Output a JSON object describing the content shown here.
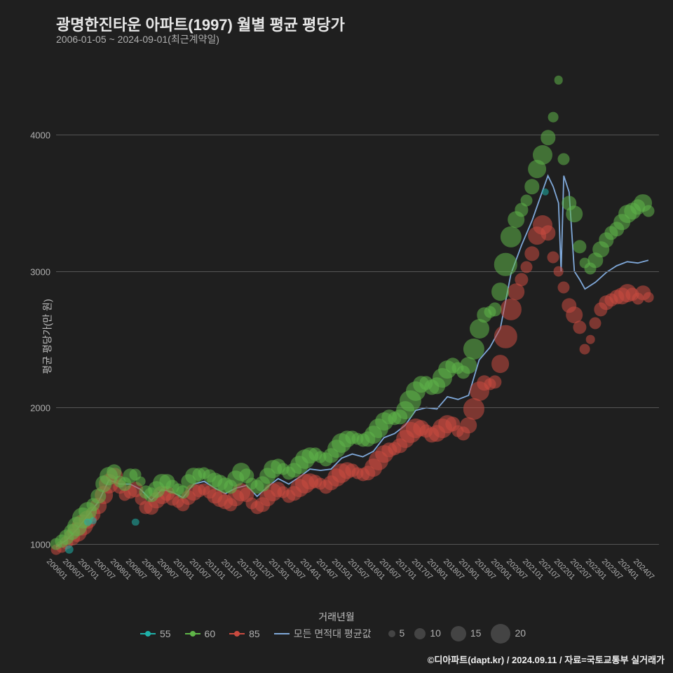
{
  "title": "광명한진타운 아파트(1997) 월별 평균 평당가",
  "subtitle": "2006-01-05 ~ 2024-09-01(최근계약일)",
  "ylabel": "평균 평당가(만 원)",
  "xlabel": "거래년월",
  "credit": "©디아파트(dapt.kr) / 2024.09.11 / 자료=국토교통부 실거래가",
  "chart": {
    "type": "scatter+line",
    "background": "#1f1f1f",
    "grid_color": "#555555",
    "ylim": [
      800,
      4500
    ],
    "yticks": [
      1000,
      2000,
      3000,
      4000
    ],
    "xlim": [
      0,
      228
    ],
    "xticks_every": 6,
    "xtick_labels": [
      "200601",
      "200607",
      "200701",
      "200707",
      "200801",
      "200807",
      "200901",
      "200907",
      "201001",
      "201007",
      "201101",
      "201107",
      "201201",
      "201207",
      "201301",
      "201307",
      "201401",
      "201407",
      "201501",
      "201507",
      "201601",
      "201607",
      "201701",
      "201707",
      "201801",
      "201807",
      "201901",
      "201907",
      "202001",
      "202007",
      "202101",
      "202107",
      "202201",
      "202207",
      "202301",
      "202307",
      "202401",
      "202407"
    ],
    "series": {
      "55": {
        "label": "55",
        "color": "#1fb0a8"
      },
      "60": {
        "label": "60",
        "color": "#5fb548"
      },
      "85": {
        "label": "85",
        "color": "#c94a3f"
      },
      "avg": {
        "label": "모든 면적대 평균값",
        "color": "#7fa8d9"
      }
    },
    "size_legend": [
      {
        "label": "5",
        "px": 10
      },
      {
        "label": "10",
        "px": 16
      },
      {
        "label": "15",
        "px": 22
      },
      {
        "label": "20",
        "px": 28
      }
    ],
    "points_55": [
      [
        5,
        960,
        6
      ],
      [
        12,
        1160,
        4
      ],
      [
        14,
        1170,
        4
      ],
      [
        30,
        1160,
        4
      ],
      [
        185,
        3580,
        4
      ]
    ],
    "points_60": [
      [
        0,
        1000,
        10
      ],
      [
        2,
        1020,
        12
      ],
      [
        4,
        1050,
        14
      ],
      [
        6,
        1090,
        16
      ],
      [
        8,
        1130,
        20
      ],
      [
        10,
        1190,
        22
      ],
      [
        12,
        1240,
        18
      ],
      [
        14,
        1290,
        12
      ],
      [
        16,
        1350,
        14
      ],
      [
        18,
        1440,
        16
      ],
      [
        20,
        1500,
        18
      ],
      [
        22,
        1530,
        14
      ],
      [
        24,
        1460,
        10
      ],
      [
        26,
        1440,
        12
      ],
      [
        28,
        1500,
        14
      ],
      [
        30,
        1510,
        10
      ],
      [
        32,
        1460,
        8
      ],
      [
        34,
        1380,
        12
      ],
      [
        36,
        1360,
        14
      ],
      [
        38,
        1400,
        16
      ],
      [
        40,
        1450,
        18
      ],
      [
        42,
        1460,
        14
      ],
      [
        44,
        1420,
        12
      ],
      [
        46,
        1400,
        10
      ],
      [
        48,
        1380,
        12
      ],
      [
        50,
        1460,
        14
      ],
      [
        52,
        1500,
        16
      ],
      [
        54,
        1510,
        12
      ],
      [
        56,
        1520,
        10
      ],
      [
        58,
        1500,
        12
      ],
      [
        60,
        1470,
        14
      ],
      [
        62,
        1450,
        16
      ],
      [
        64,
        1430,
        14
      ],
      [
        66,
        1420,
        12
      ],
      [
        68,
        1480,
        16
      ],
      [
        70,
        1530,
        18
      ],
      [
        72,
        1500,
        14
      ],
      [
        74,
        1440,
        10
      ],
      [
        76,
        1420,
        12
      ],
      [
        78,
        1440,
        14
      ],
      [
        80,
        1500,
        16
      ],
      [
        82,
        1550,
        18
      ],
      [
        84,
        1570,
        14
      ],
      [
        86,
        1550,
        10
      ],
      [
        88,
        1520,
        12
      ],
      [
        90,
        1540,
        14
      ],
      [
        92,
        1580,
        18
      ],
      [
        94,
        1620,
        20
      ],
      [
        96,
        1650,
        16
      ],
      [
        98,
        1660,
        12
      ],
      [
        100,
        1640,
        10
      ],
      [
        102,
        1620,
        12
      ],
      [
        104,
        1650,
        14
      ],
      [
        106,
        1700,
        18
      ],
      [
        108,
        1740,
        20
      ],
      [
        110,
        1770,
        16
      ],
      [
        112,
        1780,
        12
      ],
      [
        114,
        1770,
        10
      ],
      [
        116,
        1760,
        12
      ],
      [
        118,
        1770,
        14
      ],
      [
        120,
        1800,
        18
      ],
      [
        122,
        1850,
        20
      ],
      [
        124,
        1900,
        18
      ],
      [
        126,
        1930,
        14
      ],
      [
        128,
        1920,
        12
      ],
      [
        130,
        1930,
        14
      ],
      [
        132,
        1980,
        18
      ],
      [
        134,
        2050,
        22
      ],
      [
        136,
        2120,
        20
      ],
      [
        138,
        2170,
        16
      ],
      [
        140,
        2180,
        12
      ],
      [
        142,
        2150,
        14
      ],
      [
        144,
        2160,
        16
      ],
      [
        146,
        2220,
        20
      ],
      [
        148,
        2280,
        18
      ],
      [
        150,
        2310,
        14
      ],
      [
        152,
        2290,
        10
      ],
      [
        154,
        2260,
        12
      ],
      [
        156,
        2310,
        16
      ],
      [
        158,
        2430,
        22
      ],
      [
        160,
        2580,
        20
      ],
      [
        162,
        2680,
        14
      ],
      [
        164,
        2700,
        10
      ],
      [
        166,
        2720,
        12
      ],
      [
        168,
        2850,
        18
      ],
      [
        170,
        3050,
        24
      ],
      [
        172,
        3250,
        22
      ],
      [
        174,
        3380,
        16
      ],
      [
        176,
        3450,
        12
      ],
      [
        178,
        3520,
        10
      ],
      [
        180,
        3620,
        14
      ],
      [
        182,
        3750,
        18
      ],
      [
        184,
        3850,
        20
      ],
      [
        186,
        3980,
        14
      ],
      [
        188,
        4130,
        8
      ],
      [
        190,
        4400,
        6
      ],
      [
        192,
        3820,
        10
      ],
      [
        194,
        3500,
        14
      ],
      [
        196,
        3420,
        16
      ],
      [
        198,
        3180,
        12
      ],
      [
        200,
        3060,
        8
      ],
      [
        202,
        3020,
        10
      ],
      [
        204,
        3080,
        14
      ],
      [
        206,
        3160,
        16
      ],
      [
        208,
        3230,
        14
      ],
      [
        210,
        3280,
        12
      ],
      [
        212,
        3310,
        14
      ],
      [
        214,
        3360,
        16
      ],
      [
        216,
        3420,
        18
      ],
      [
        218,
        3440,
        16
      ],
      [
        220,
        3470,
        14
      ],
      [
        222,
        3500,
        18
      ],
      [
        224,
        3440,
        10
      ]
    ],
    "points_85": [
      [
        0,
        960,
        8
      ],
      [
        2,
        980,
        10
      ],
      [
        4,
        1010,
        12
      ],
      [
        6,
        1050,
        16
      ],
      [
        8,
        1090,
        20
      ],
      [
        10,
        1140,
        22
      ],
      [
        12,
        1180,
        18
      ],
      [
        14,
        1220,
        14
      ],
      [
        16,
        1280,
        16
      ],
      [
        18,
        1360,
        18
      ],
      [
        20,
        1440,
        20
      ],
      [
        22,
        1500,
        16
      ],
      [
        24,
        1420,
        12
      ],
      [
        26,
        1360,
        10
      ],
      [
        28,
        1380,
        12
      ],
      [
        30,
        1400,
        14
      ],
      [
        32,
        1330,
        10
      ],
      [
        34,
        1270,
        12
      ],
      [
        36,
        1270,
        14
      ],
      [
        38,
        1320,
        16
      ],
      [
        40,
        1360,
        18
      ],
      [
        42,
        1370,
        14
      ],
      [
        44,
        1330,
        12
      ],
      [
        46,
        1310,
        10
      ],
      [
        48,
        1290,
        12
      ],
      [
        50,
        1340,
        14
      ],
      [
        52,
        1380,
        16
      ],
      [
        54,
        1390,
        12
      ],
      [
        56,
        1400,
        10
      ],
      [
        58,
        1380,
        12
      ],
      [
        60,
        1350,
        14
      ],
      [
        62,
        1330,
        16
      ],
      [
        64,
        1310,
        14
      ],
      [
        66,
        1290,
        12
      ],
      [
        68,
        1340,
        16
      ],
      [
        70,
        1380,
        18
      ],
      [
        72,
        1360,
        14
      ],
      [
        74,
        1300,
        10
      ],
      [
        76,
        1270,
        12
      ],
      [
        78,
        1290,
        14
      ],
      [
        80,
        1340,
        16
      ],
      [
        82,
        1380,
        18
      ],
      [
        84,
        1400,
        14
      ],
      [
        86,
        1380,
        10
      ],
      [
        88,
        1350,
        12
      ],
      [
        90,
        1370,
        14
      ],
      [
        92,
        1410,
        18
      ],
      [
        94,
        1440,
        20
      ],
      [
        96,
        1460,
        16
      ],
      [
        98,
        1460,
        12
      ],
      [
        100,
        1440,
        10
      ],
      [
        102,
        1420,
        12
      ],
      [
        104,
        1450,
        14
      ],
      [
        106,
        1490,
        18
      ],
      [
        108,
        1520,
        20
      ],
      [
        110,
        1540,
        16
      ],
      [
        112,
        1540,
        12
      ],
      [
        114,
        1520,
        10
      ],
      [
        116,
        1510,
        12
      ],
      [
        118,
        1520,
        14
      ],
      [
        120,
        1560,
        18
      ],
      [
        122,
        1610,
        20
      ],
      [
        124,
        1660,
        18
      ],
      [
        126,
        1690,
        14
      ],
      [
        128,
        1700,
        12
      ],
      [
        130,
        1720,
        14
      ],
      [
        132,
        1770,
        18
      ],
      [
        134,
        1820,
        22
      ],
      [
        136,
        1850,
        20
      ],
      [
        138,
        1850,
        16
      ],
      [
        140,
        1830,
        12
      ],
      [
        142,
        1800,
        14
      ],
      [
        144,
        1810,
        16
      ],
      [
        146,
        1850,
        20
      ],
      [
        148,
        1880,
        18
      ],
      [
        150,
        1880,
        14
      ],
      [
        152,
        1830,
        10
      ],
      [
        154,
        1810,
        12
      ],
      [
        156,
        1870,
        16
      ],
      [
        158,
        1990,
        22
      ],
      [
        160,
        2120,
        20
      ],
      [
        162,
        2180,
        14
      ],
      [
        164,
        2170,
        10
      ],
      [
        166,
        2190,
        12
      ],
      [
        168,
        2320,
        18
      ],
      [
        170,
        2520,
        24
      ],
      [
        172,
        2720,
        22
      ],
      [
        174,
        2850,
        16
      ],
      [
        176,
        2940,
        12
      ],
      [
        178,
        3030,
        10
      ],
      [
        180,
        3130,
        14
      ],
      [
        182,
        3260,
        18
      ],
      [
        184,
        3340,
        20
      ],
      [
        186,
        3280,
        14
      ],
      [
        188,
        3100,
        10
      ],
      [
        190,
        3000,
        8
      ],
      [
        192,
        2880,
        10
      ],
      [
        194,
        2750,
        14
      ],
      [
        196,
        2680,
        16
      ],
      [
        198,
        2590,
        12
      ],
      [
        200,
        2430,
        8
      ],
      [
        202,
        2500,
        6
      ],
      [
        204,
        2620,
        10
      ],
      [
        206,
        2720,
        12
      ],
      [
        208,
        2770,
        14
      ],
      [
        210,
        2790,
        12
      ],
      [
        212,
        2810,
        14
      ],
      [
        214,
        2820,
        16
      ],
      [
        216,
        2840,
        18
      ],
      [
        218,
        2830,
        12
      ],
      [
        220,
        2800,
        10
      ],
      [
        222,
        2840,
        14
      ],
      [
        224,
        2810,
        8
      ]
    ],
    "avg_line": [
      [
        0,
        980
      ],
      [
        4,
        1030
      ],
      [
        8,
        1110
      ],
      [
        12,
        1210
      ],
      [
        16,
        1310
      ],
      [
        20,
        1470
      ],
      [
        24,
        1440
      ],
      [
        28,
        1440
      ],
      [
        32,
        1400
      ],
      [
        36,
        1320
      ],
      [
        40,
        1400
      ],
      [
        44,
        1380
      ],
      [
        48,
        1340
      ],
      [
        52,
        1440
      ],
      [
        56,
        1460
      ],
      [
        60,
        1410
      ],
      [
        64,
        1370
      ],
      [
        68,
        1410
      ],
      [
        72,
        1430
      ],
      [
        76,
        1350
      ],
      [
        80,
        1420
      ],
      [
        84,
        1480
      ],
      [
        88,
        1440
      ],
      [
        92,
        1490
      ],
      [
        96,
        1550
      ],
      [
        100,
        1540
      ],
      [
        104,
        1550
      ],
      [
        108,
        1630
      ],
      [
        112,
        1660
      ],
      [
        116,
        1640
      ],
      [
        120,
        1680
      ],
      [
        124,
        1780
      ],
      [
        128,
        1810
      ],
      [
        132,
        1870
      ],
      [
        136,
        1980
      ],
      [
        140,
        2000
      ],
      [
        144,
        1990
      ],
      [
        148,
        2080
      ],
      [
        152,
        2060
      ],
      [
        156,
        2090
      ],
      [
        160,
        2350
      ],
      [
        164,
        2440
      ],
      [
        168,
        2580
      ],
      [
        172,
        2980
      ],
      [
        176,
        3190
      ],
      [
        180,
        3370
      ],
      [
        184,
        3590
      ],
      [
        186,
        3700
      ],
      [
        188,
        3620
      ],
      [
        190,
        3500
      ],
      [
        191,
        3000
      ],
      [
        192,
        3700
      ],
      [
        194,
        3580
      ],
      [
        196,
        3000
      ],
      [
        198,
        2940
      ],
      [
        200,
        2870
      ],
      [
        204,
        2920
      ],
      [
        208,
        2990
      ],
      [
        212,
        3040
      ],
      [
        216,
        3070
      ],
      [
        220,
        3060
      ],
      [
        224,
        3080
      ]
    ]
  }
}
